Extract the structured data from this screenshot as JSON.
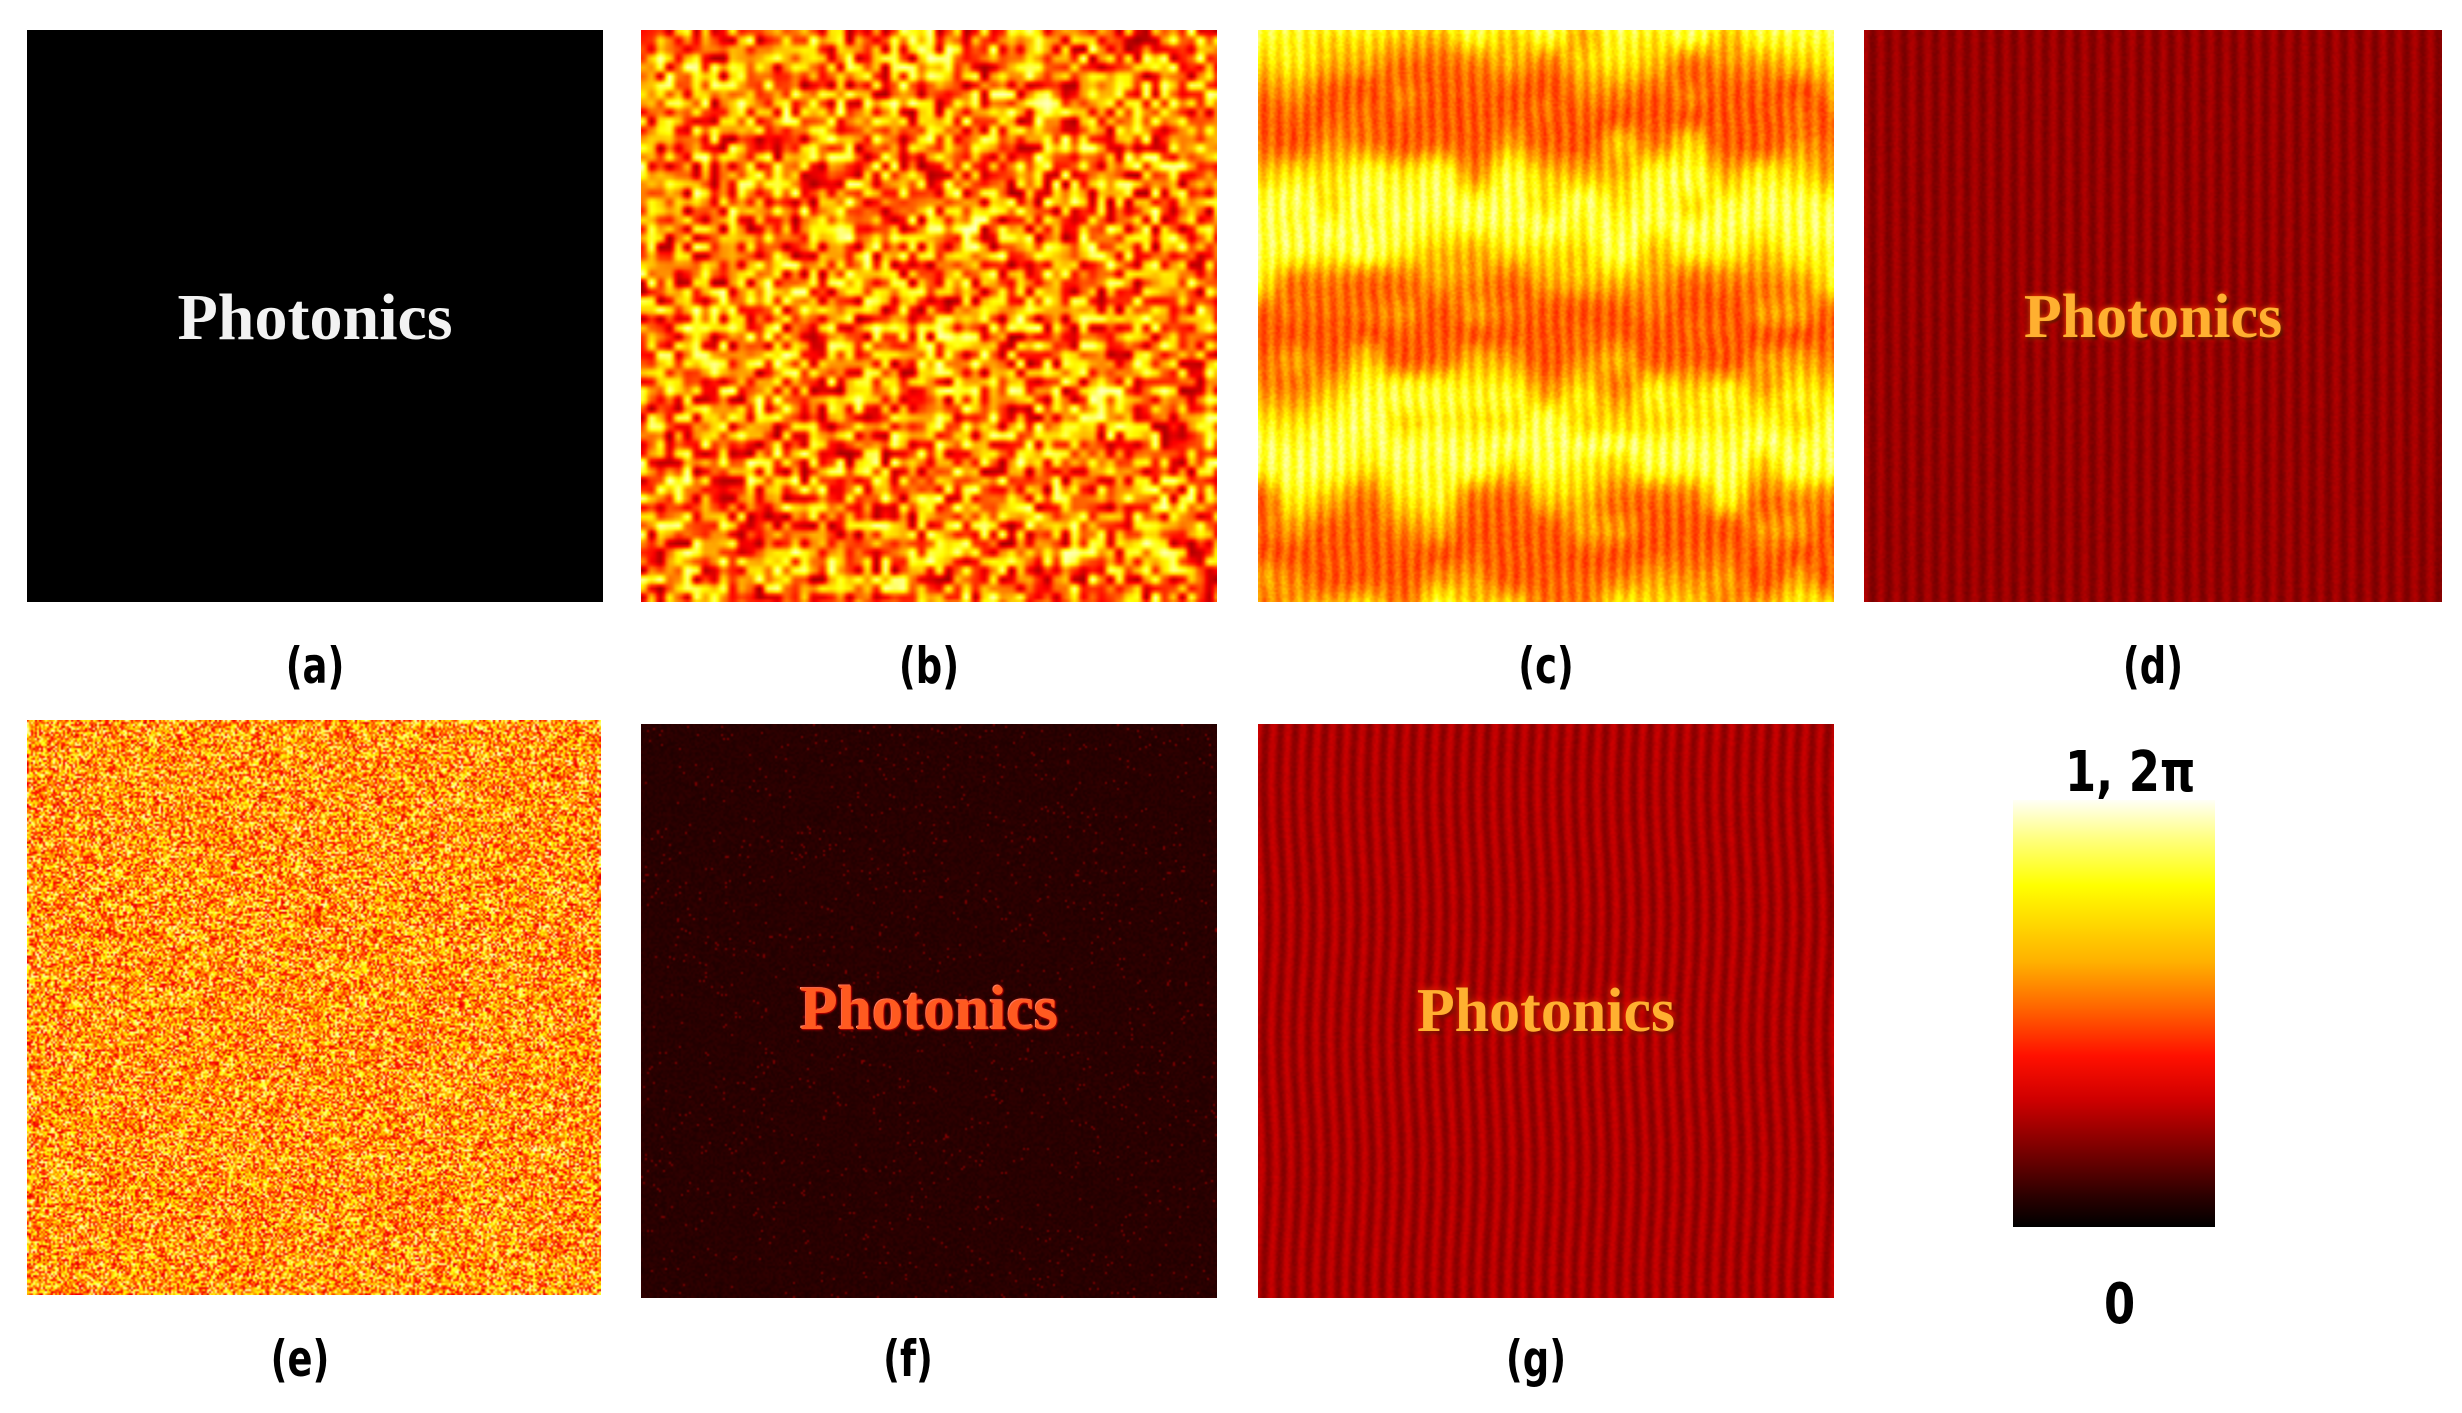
{
  "panels": [
    {
      "id": "a",
      "label": "(a)",
      "word": "Photonics"
    },
    {
      "id": "b",
      "label": "(b)"
    },
    {
      "id": "c",
      "label": "(c)"
    },
    {
      "id": "d",
      "label": "(d)",
      "word": "Photonics"
    },
    {
      "id": "e",
      "label": "(e)"
    },
    {
      "id": "f",
      "label": "(f)",
      "word": "Photonics"
    },
    {
      "id": "g",
      "label": "(g)",
      "word": "Photonics"
    }
  ],
  "colorbar": {
    "max_label": "1, 2π",
    "min_label": "0",
    "colormap": "hot",
    "stops": [
      "#000000",
      "#7a0000",
      "#ff1000",
      "#ff6a00",
      "#ffff00",
      "#fffff6"
    ]
  }
}
